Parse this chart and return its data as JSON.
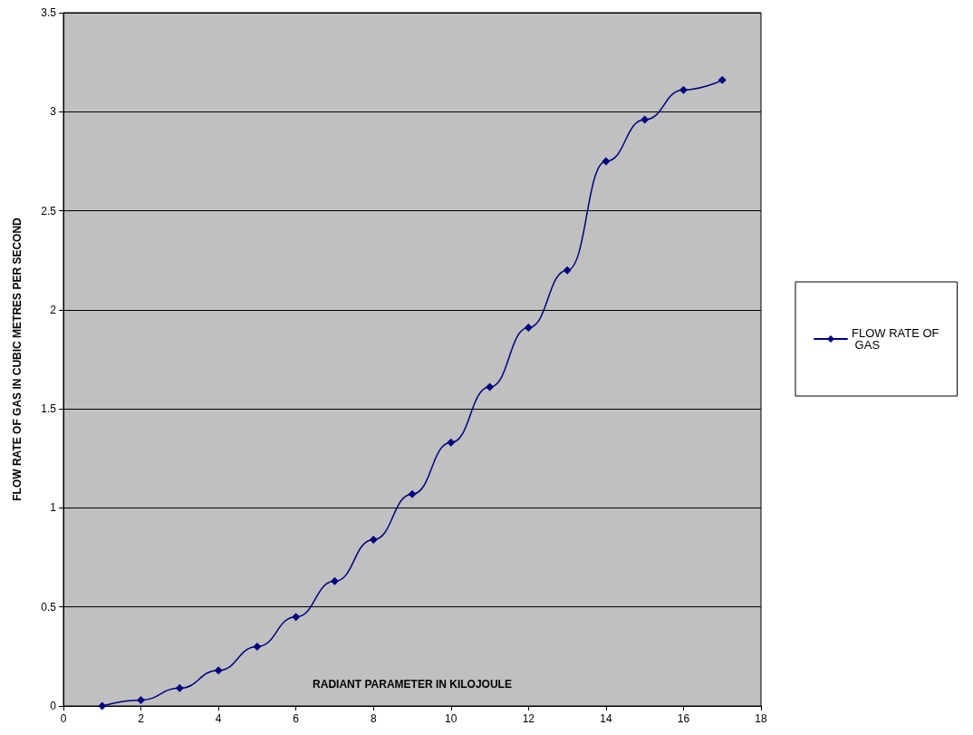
{
  "chart_data": {
    "type": "line",
    "xlabel": "RADIANT PARAMETER IN KILOJOULE",
    "ylabel": "FLOW RATE OF GAS IN CUBIC METRES PER SECOND",
    "x": [
      1,
      2,
      3,
      4,
      5,
      6,
      7,
      8,
      9,
      10,
      11,
      12,
      13,
      14,
      15,
      16,
      17
    ],
    "series": [
      {
        "name": "FLOW RATE OF GAS",
        "color": "#000080",
        "values": [
          0,
          0.03,
          0.09,
          0.18,
          0.3,
          0.45,
          0.63,
          0.84,
          1.07,
          1.33,
          1.61,
          1.91,
          2.2,
          2.75,
          2.96,
          3.11,
          3.16
        ]
      }
    ],
    "xlim": [
      0,
      18
    ],
    "xticks": [
      0,
      2,
      4,
      6,
      8,
      10,
      12,
      14,
      16,
      18
    ],
    "ylim": [
      0,
      3.5
    ],
    "yticks": [
      0,
      0.5,
      1,
      1.5,
      2,
      2.5,
      3,
      3.5
    ],
    "grid": "y",
    "legend": "right",
    "marker": "diamond",
    "line_style": "solid"
  }
}
